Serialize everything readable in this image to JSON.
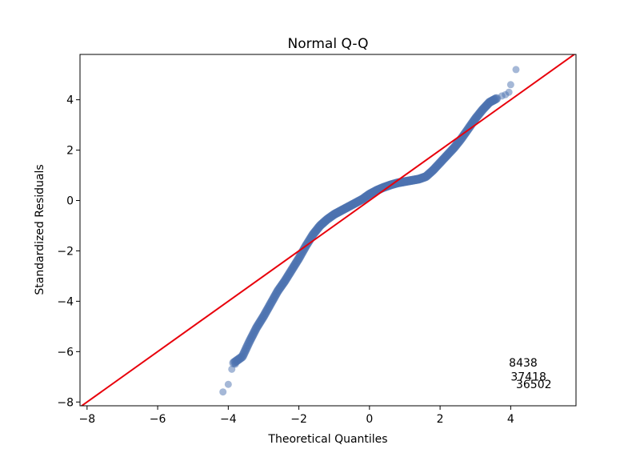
{
  "chart_data": {
    "type": "scatter",
    "title": "Normal Q-Q",
    "xlabel": "Theoretical Quantiles",
    "ylabel": "Standardized Residuals",
    "xlim": [
      -8.2,
      5.85
    ],
    "ylim": [
      -8.15,
      5.8
    ],
    "xticks": [
      -8,
      -6,
      -4,
      -2,
      0,
      2,
      4
    ],
    "yticks": [
      -8,
      -6,
      -4,
      -2,
      0,
      2,
      4
    ],
    "xtick_labels": [
      "−8",
      "−6",
      "−4",
      "−2",
      "0",
      "2",
      "4"
    ],
    "ytick_labels": [
      "−8",
      "−6",
      "−4",
      "−2",
      "0",
      "2",
      "4"
    ],
    "grid": false,
    "colors": {
      "points": "#4c72b0",
      "reference_line": "#e8000b"
    },
    "reference_line": {
      "slope": 1,
      "intercept": 0
    },
    "series": [
      {
        "curve_points": [
          [
            -3.85,
            -6.45
          ],
          [
            -3.6,
            -6.2
          ],
          [
            -3.4,
            -5.6
          ],
          [
            -3.2,
            -5.05
          ],
          [
            -3.0,
            -4.6
          ],
          [
            -2.8,
            -4.1
          ],
          [
            -2.6,
            -3.6
          ],
          [
            -2.4,
            -3.2
          ],
          [
            -2.2,
            -2.75
          ],
          [
            -2.0,
            -2.3
          ],
          [
            -1.8,
            -1.8
          ],
          [
            -1.6,
            -1.35
          ],
          [
            -1.4,
            -1.0
          ],
          [
            -1.2,
            -0.75
          ],
          [
            -1.0,
            -0.55
          ],
          [
            -0.8,
            -0.4
          ],
          [
            -0.6,
            -0.25
          ],
          [
            -0.4,
            -0.1
          ],
          [
            -0.2,
            0.05
          ],
          [
            0.0,
            0.25
          ],
          [
            0.2,
            0.4
          ],
          [
            0.4,
            0.52
          ],
          [
            0.6,
            0.62
          ],
          [
            0.8,
            0.7
          ],
          [
            1.0,
            0.75
          ],
          [
            1.2,
            0.8
          ],
          [
            1.4,
            0.85
          ],
          [
            1.6,
            0.95
          ],
          [
            1.8,
            1.2
          ],
          [
            2.0,
            1.5
          ],
          [
            2.2,
            1.8
          ],
          [
            2.4,
            2.1
          ],
          [
            2.6,
            2.45
          ],
          [
            2.8,
            2.85
          ],
          [
            3.0,
            3.25
          ],
          [
            3.2,
            3.6
          ],
          [
            3.4,
            3.9
          ],
          [
            3.6,
            4.05
          ]
        ],
        "outliers": [
          [
            -4.15,
            -7.6
          ],
          [
            -4.0,
            -7.3
          ],
          [
            -3.9,
            -6.7
          ],
          [
            -3.8,
            -6.5
          ],
          [
            3.75,
            4.15
          ],
          [
            3.85,
            4.2
          ],
          [
            3.95,
            4.3
          ],
          [
            4.0,
            4.6
          ],
          [
            4.15,
            5.2
          ]
        ]
      }
    ],
    "annotations": [
      {
        "text": "8438",
        "x": 3.95,
        "y": -6.6
      },
      {
        "text": "37418",
        "x": 4.0,
        "y": -7.15
      },
      {
        "text": "36502",
        "x": 4.15,
        "y": -7.45
      }
    ]
  }
}
